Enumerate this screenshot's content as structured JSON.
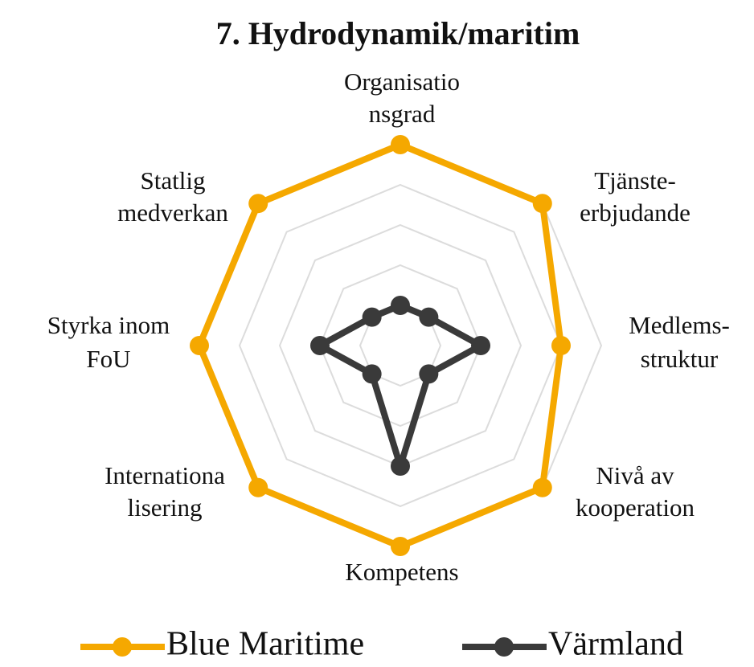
{
  "chart_data": {
    "type": "radar",
    "title": "7. Hydrodynamik/maritim",
    "categories": [
      [
        "Organisatio",
        "nsgrad"
      ],
      [
        "Tjänste-",
        "erbjudande"
      ],
      [
        "Medlems-",
        "struktur"
      ],
      [
        "Nivå av",
        "kooperation"
      ],
      [
        "Kompetens"
      ],
      [
        "Internationa",
        "lisering"
      ],
      [
        "Styrka inom",
        "FoU"
      ],
      [
        "Statlig",
        "medverkan"
      ]
    ],
    "series": [
      {
        "name": "Blue Maritime",
        "color": "#f5a800",
        "values": [
          5,
          5,
          4,
          5,
          5,
          5,
          5,
          5
        ]
      },
      {
        "name": "Värmland",
        "color": "#3a3a3a",
        "values": [
          1,
          1,
          2,
          1,
          3,
          1,
          2,
          1
        ]
      }
    ],
    "rlim": [
      0,
      5
    ],
    "rticks": [
      1,
      2,
      3,
      4,
      5
    ],
    "grid": true,
    "legend": "bottom"
  }
}
